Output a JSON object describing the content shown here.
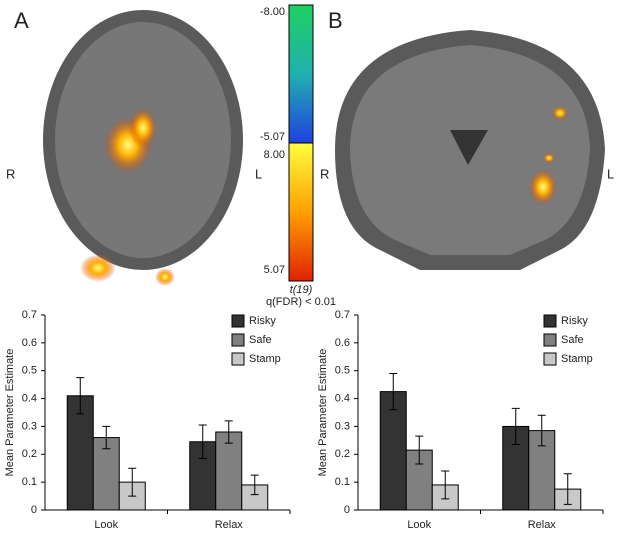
{
  "figure": {
    "panel_a": "A",
    "panel_b": "B",
    "orient_right": "R",
    "orient_left": "L",
    "colorbar": {
      "negative_ticks": [
        {
          "value": -8,
          "label": "-8.00"
        },
        {
          "value": -5.07,
          "label": "-5.07"
        }
      ],
      "positive_ticks": [
        {
          "value": 8,
          "label": "8.00"
        },
        {
          "value": 5.07,
          "label": "5.07"
        }
      ],
      "stat_label": "t(19)",
      "threshold_label": "q(FDR) < 0.01"
    }
  },
  "chart_data": [
    {
      "type": "bar",
      "ylabel": "Mean Parameter Estimate",
      "categories": [
        "Look",
        "Relax"
      ],
      "ylim": [
        0,
        0.7
      ],
      "yticks": [
        0,
        0.1,
        0.2,
        0.3,
        0.4,
        0.5,
        0.6,
        0.7
      ],
      "series": [
        {
          "name": "Risky",
          "color": "#333333",
          "values": [
            0.41,
            0.245
          ],
          "errors": [
            0.065,
            0.06
          ]
        },
        {
          "name": "Safe",
          "color": "#808080",
          "values": [
            0.26,
            0.28
          ],
          "errors": [
            0.04,
            0.04
          ]
        },
        {
          "name": "Stamp",
          "color": "#c8c8c8",
          "values": [
            0.1,
            0.09
          ],
          "errors": [
            0.05,
            0.035
          ]
        }
      ]
    },
    {
      "type": "bar",
      "ylabel": "Mean Parameter Estimate",
      "categories": [
        "Look",
        "Relax"
      ],
      "ylim": [
        0,
        0.7
      ],
      "yticks": [
        0,
        0.1,
        0.2,
        0.3,
        0.4,
        0.5,
        0.6,
        0.7
      ],
      "series": [
        {
          "name": "Risky",
          "color": "#333333",
          "values": [
            0.425,
            0.3
          ],
          "errors": [
            0.065,
            0.065
          ]
        },
        {
          "name": "Safe",
          "color": "#808080",
          "values": [
            0.215,
            0.285
          ],
          "errors": [
            0.05,
            0.055
          ]
        },
        {
          "name": "Stamp",
          "color": "#c8c8c8",
          "values": [
            0.09,
            0.075
          ],
          "errors": [
            0.05,
            0.055
          ]
        }
      ]
    }
  ]
}
